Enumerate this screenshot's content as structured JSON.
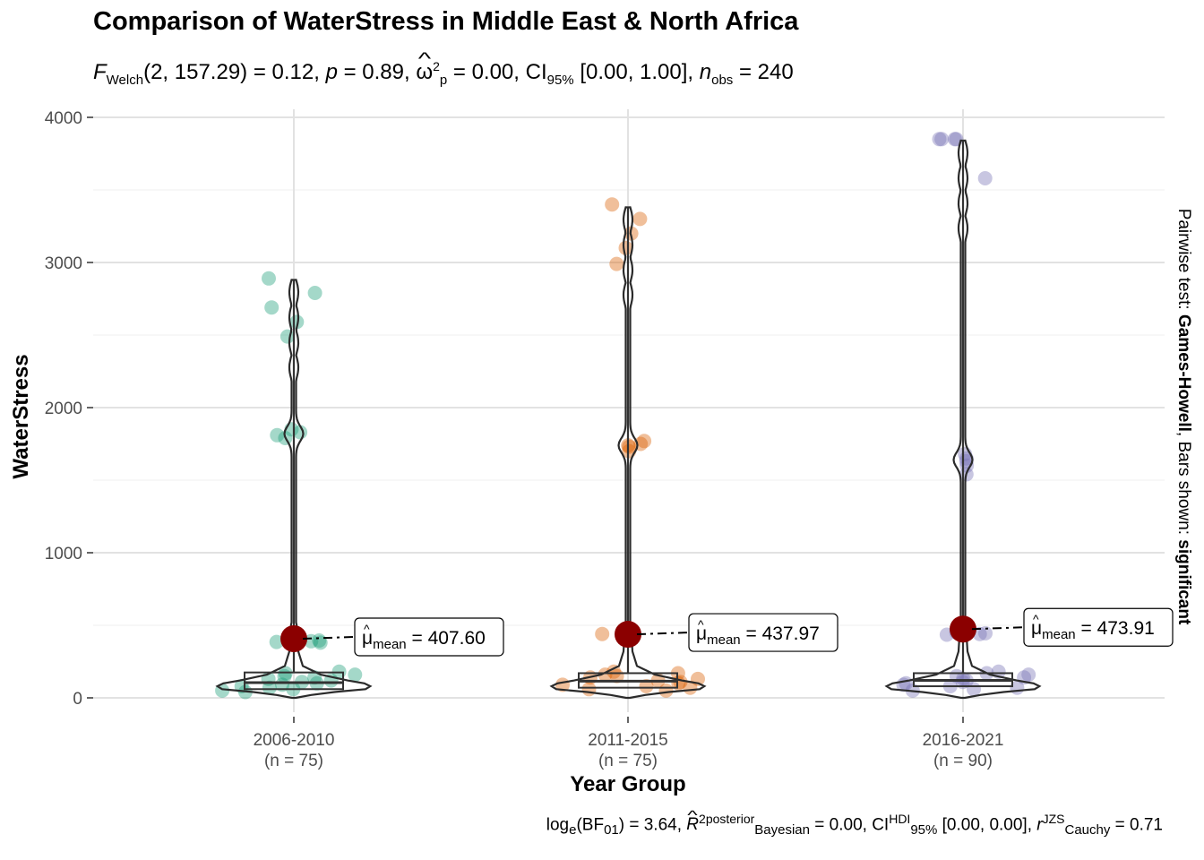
{
  "title": "Comparison of WaterStress in Middle East & North Africa",
  "subtitle": {
    "stat_name": "F",
    "stat_sub": "Welch",
    "df": "(2, 157.29) = 0.12, ",
    "p_label": "p",
    "p_value": " = 0.89, ",
    "effect": "ω",
    "effect_sup": "2",
    "effect_sub": "p",
    "effect_value": " = 0.00, CI",
    "ci_sub": "95%",
    "ci_value": " [0.00, 1.00], ",
    "n_label": "n",
    "n_sub": "obs",
    "n_value": " = 240"
  },
  "caption": {
    "bf_label": "log",
    "bf_sub": "e",
    "bf_mid": "(BF",
    "bf_sub2": "01",
    "bf_value": ") = 3.64, ",
    "r2": "R",
    "r2_sup": "2",
    "r2_sup2": "posterior",
    "r2_sub": "Bayesian",
    "r2_value": " = 0.00, CI",
    "ci_sup": "HDI",
    "ci_sub": "95%",
    "ci_value": " [0.00, 0.00], ",
    "r_label": "r",
    "r_sup": "JZS",
    "r_sub": "Cauchy",
    "r_value": " = 0.71"
  },
  "right_label": {
    "prefix": "Pairwise test: ",
    "test": "Games-Howell",
    "middle": ", Bars shown: ",
    "shown": "significant"
  },
  "chart_data": {
    "type": "violin-box-scatter",
    "title": "Comparison of WaterStress in Middle East & North Africa",
    "xlabel": "Year Group",
    "ylabel": "WaterStress",
    "ylim": [
      -50,
      4050
    ],
    "yticks": [
      0,
      1000,
      2000,
      3000,
      4000
    ],
    "grid": true,
    "categories": [
      "2006-2010",
      "2011-2015",
      "2016-2021"
    ],
    "category_n": [
      "(n = 75)",
      "(n = 75)",
      "(n = 90)"
    ],
    "colors": [
      "#1b9e77",
      "#d95f02",
      "#7570b3"
    ],
    "mean_color": "#8b0000",
    "groups": [
      {
        "name": "2006-2010",
        "mean": 407.6,
        "mean_label": "407.60",
        "box": {
          "q1": 60,
          "median": 105,
          "q3": 175,
          "whisker_low": 25,
          "whisker_high": 2880
        },
        "points": [
          2890,
          2790,
          2690,
          2590,
          2490,
          1850,
          1830,
          1810,
          1790,
          400,
          395,
          390,
          385,
          380,
          180,
          170,
          160,
          150,
          140,
          130,
          120,
          110,
          100,
          90,
          80,
          70,
          60,
          50,
          40
        ]
      },
      {
        "name": "2011-2015",
        "mean": 437.97,
        "mean_label": "437.97",
        "box": {
          "q1": 70,
          "median": 115,
          "q3": 170,
          "whisker_low": 30,
          "whisker_high": 3380
        },
        "points": [
          3400,
          3300,
          3200,
          3100,
          2990,
          1770,
          1750,
          1740,
          1730,
          1700,
          440,
          430,
          425,
          180,
          170,
          160,
          150,
          140,
          130,
          120,
          110,
          100,
          90,
          80,
          70,
          60,
          50
        ]
      },
      {
        "name": "2016-2021",
        "mean": 473.91,
        "mean_label": "473.91",
        "box": {
          "q1": 80,
          "median": 120,
          "q3": 170,
          "whisker_low": 30,
          "whisker_high": 3840
        },
        "points": [
          3850,
          3850,
          3850,
          3850,
          3580,
          1680,
          1650,
          1630,
          1600,
          1540,
          450,
          445,
          440,
          435,
          180,
          170,
          160,
          150,
          140,
          130,
          120,
          110,
          100,
          90,
          80,
          70,
          60,
          50
        ]
      }
    ],
    "mean_prefix": "μ",
    "mean_sub": "mean",
    "mean_eq": " = "
  }
}
